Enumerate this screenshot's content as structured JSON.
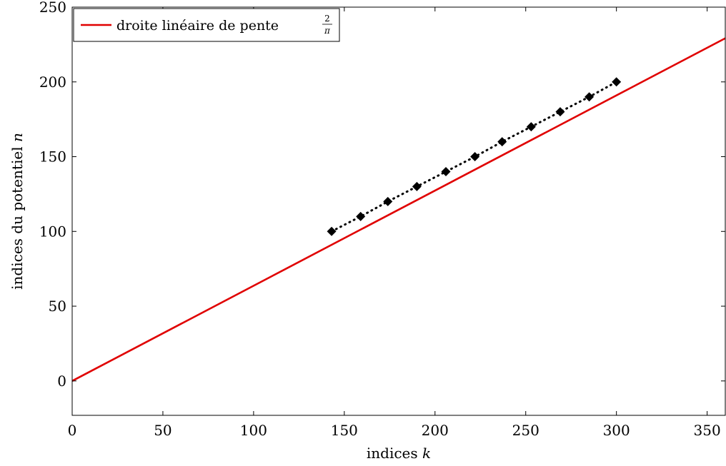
{
  "chart_data": {
    "type": "line",
    "xlabel": "indices k",
    "xlabel_text": "indices ",
    "xlabel_var": "k",
    "ylabel": "indices du potentiel n",
    "ylabel_text": "indices du potentiel ",
    "ylabel_var": "n",
    "xlim": [
      0,
      360
    ],
    "ylim": [
      -23,
      250
    ],
    "xticks": [
      0,
      50,
      100,
      150,
      200,
      250,
      300,
      350
    ],
    "yticks": [
      0,
      50,
      100,
      150,
      200,
      250
    ],
    "grid": false,
    "legend_placement": "top-left",
    "series": [
      {
        "name": "droite linéaire de pente 2/π",
        "legend_text": "droite linéaire de pente ",
        "legend_frac_num": "2",
        "legend_frac_den": "π",
        "style": "solid",
        "color": "#e00000",
        "x": [
          0,
          360
        ],
        "y": [
          0,
          229.18
        ]
      },
      {
        "style": "dotted-markers",
        "color": "#000000",
        "marker": "diamond",
        "x": [
          143,
          159,
          174,
          190,
          206,
          222,
          237,
          253,
          269,
          285,
          300
        ],
        "y": [
          100,
          110,
          120,
          130,
          140,
          150,
          160,
          170,
          180,
          190,
          200
        ]
      }
    ]
  }
}
